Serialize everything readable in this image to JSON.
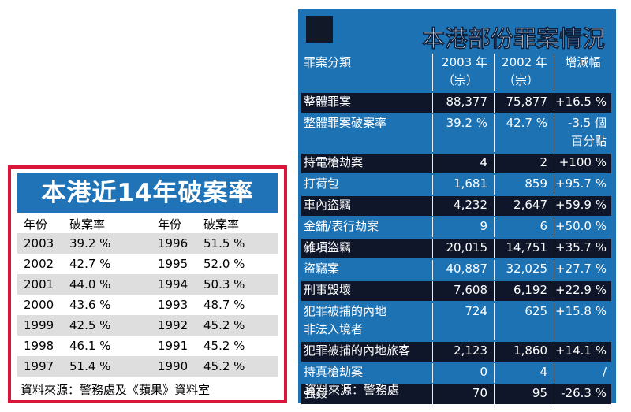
{
  "left": {
    "title": "本港近14年破案率",
    "header": {
      "year": "年份",
      "rate": "破案率"
    },
    "rows": [
      {
        "y1": "2003",
        "r1": "39.2 %",
        "y2": "1996",
        "r2": "51.5 %"
      },
      {
        "y1": "2002",
        "r1": "42.7 %",
        "y2": "1995",
        "r2": "52.0 %"
      },
      {
        "y1": "2001",
        "r1": "44.0 %",
        "y2": "1994",
        "r2": "50.3 %"
      },
      {
        "y1": "2000",
        "r1": "43.6 %",
        "y2": "1993",
        "r2": "48.7 %"
      },
      {
        "y1": "1999",
        "r1": "42.5 %",
        "y2": "1992",
        "r2": "45.2 %"
      },
      {
        "y1": "1998",
        "r1": "46.1 %",
        "y2": "1991",
        "r2": "45.2 %"
      },
      {
        "y1": "1997",
        "r1": "51.4 %",
        "y2": "1990",
        "r2": "45.2 %"
      }
    ],
    "source": "資料來源：警務處及《蘋果》資料室",
    "colors": {
      "border": "#d9163a",
      "title_bg": "#1f73b6",
      "shade": "#dedede"
    }
  },
  "right": {
    "title": "本港部份罪案情況",
    "header": {
      "c0": [
        "罪案分類"
      ],
      "c1": [
        "2003 年",
        "（宗）"
      ],
      "c2": [
        "2002 年",
        "（宗）"
      ],
      "c3": [
        "增減幅"
      ]
    },
    "rows": [
      {
        "c0": [
          "整體罪案"
        ],
        "c1": [
          "88,377"
        ],
        "c2": [
          "75,877"
        ],
        "c3": [
          "+16.5 %"
        ],
        "dark": true
      },
      {
        "c0": [
          "整體罪案破案率"
        ],
        "c1": [
          "39.2 %"
        ],
        "c2": [
          "42.7 %"
        ],
        "c3": [
          "-3.5 個",
          "百分點"
        ],
        "dark": false
      },
      {
        "c0": [
          "持電槍劫案"
        ],
        "c1": [
          "4"
        ],
        "c2": [
          "2"
        ],
        "c3": [
          "+100 %"
        ],
        "dark": true
      },
      {
        "c0": [
          "打荷包"
        ],
        "c1": [
          "1,681"
        ],
        "c2": [
          "859"
        ],
        "c3": [
          "+95.7 %"
        ],
        "dark": false
      },
      {
        "c0": [
          "車內盜竊"
        ],
        "c1": [
          "4,232"
        ],
        "c2": [
          "2,647"
        ],
        "c3": [
          "+59.9 %"
        ],
        "dark": true
      },
      {
        "c0": [
          "金舖/表行劫案"
        ],
        "c1": [
          "9"
        ],
        "c2": [
          "6"
        ],
        "c3": [
          "+50.0 %"
        ],
        "dark": false
      },
      {
        "c0": [
          "雜項盜竊"
        ],
        "c1": [
          "20,015"
        ],
        "c2": [
          "14,751"
        ],
        "c3": [
          "+35.7 %"
        ],
        "dark": true
      },
      {
        "c0": [
          "盜竊案"
        ],
        "c1": [
          "40,887"
        ],
        "c2": [
          "32,025"
        ],
        "c3": [
          "+27.7 %"
        ],
        "dark": false
      },
      {
        "c0": [
          "刑事毀壞"
        ],
        "c1": [
          "7,608"
        ],
        "c2": [
          "6,192"
        ],
        "c3": [
          "+22.9 %"
        ],
        "dark": true
      },
      {
        "c0": [
          "犯罪被捕的內地",
          "非法入境者"
        ],
        "c1": [
          "724"
        ],
        "c2": [
          "625"
        ],
        "c3": [
          "+15.8 %"
        ],
        "dark": false
      },
      {
        "c0": [
          "犯罪被捕的內地旅客"
        ],
        "c1": [
          "2,123"
        ],
        "c2": [
          "1,860"
        ],
        "c3": [
          "+14.1 %"
        ],
        "dark": true
      },
      {
        "c0": [
          "持真槍劫案"
        ],
        "c1": [
          "0"
        ],
        "c2": [
          "4"
        ],
        "c3": [
          "/"
        ],
        "dark": false
      },
      {
        "c0": [
          "強姦"
        ],
        "c1": [
          "70"
        ],
        "c2": [
          "95"
        ],
        "c3": [
          "-26.3 %"
        ],
        "dark": true
      }
    ],
    "source": "資料來源：警務處",
    "colors": {
      "panel_bg": "#1d72b4",
      "dark_row": "#0f1629"
    }
  }
}
